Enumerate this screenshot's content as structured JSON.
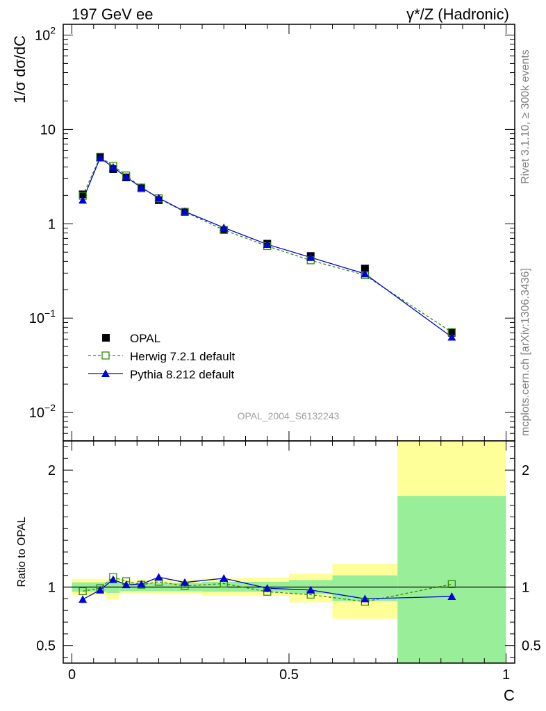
{
  "header": {
    "left": "197 GeV ee",
    "right_sup": "γ*/Z (Hadronic)"
  },
  "side_text": {
    "rivet": "Rivet 3.1.10, ≥ 300k events",
    "mcplots": "mcplots.cern.ch [arXiv:1306.3436]"
  },
  "analysis_id": "OPAL_2004_S6132243",
  "colors": {
    "data": "#000000",
    "herwig": "#2e8b00",
    "pythia": "#0000e0",
    "band_inner": "#99ee99",
    "band_outer": "#ffff99"
  },
  "chart_data": [
    {
      "type": "line",
      "panel": "main",
      "ylabel": "1/σ dσ/dC",
      "yscale": "log",
      "ylim": [
        0.005,
        130
      ],
      "xlim": [
        -0.02,
        1.02
      ],
      "yticks": [
        {
          "v": 100,
          "base": "10",
          "exp": "2"
        },
        {
          "v": 10,
          "base": "10",
          "exp": ""
        },
        {
          "v": 1,
          "base": "1",
          "exp": ""
        },
        {
          "v": 0.1,
          "base": "10",
          "exp": "−1"
        },
        {
          "v": 0.01,
          "base": "10",
          "exp": "−2"
        }
      ],
      "legend_position": "center-left",
      "series": [
        {
          "name": "OPAL",
          "marker": "filled-square",
          "x": [
            0.025,
            0.065,
            0.095,
            0.125,
            0.16,
            0.2,
            0.26,
            0.35,
            0.45,
            0.55,
            0.675,
            0.875
          ],
          "y": [
            2.05,
            5.15,
            3.8,
            3.1,
            2.38,
            1.78,
            1.33,
            0.86,
            0.615,
            0.455,
            0.335,
            0.07
          ]
        },
        {
          "name": "Herwig 7.2.1 default",
          "marker": "open-square",
          "line": "dashed",
          "x": [
            0.025,
            0.065,
            0.095,
            0.125,
            0.16,
            0.2,
            0.26,
            0.35,
            0.45,
            0.55,
            0.675,
            0.875
          ],
          "y": [
            1.98,
            5.1,
            4.12,
            3.25,
            2.42,
            1.86,
            1.34,
            0.86,
            0.58,
            0.41,
            0.285,
            0.071
          ]
        },
        {
          "name": "Pythia 8.212 default",
          "marker": "filled-triangle",
          "line": "solid",
          "x": [
            0.025,
            0.065,
            0.095,
            0.125,
            0.16,
            0.2,
            0.26,
            0.35,
            0.45,
            0.55,
            0.675,
            0.875
          ],
          "y": [
            1.78,
            4.98,
            3.98,
            3.12,
            2.42,
            1.88,
            1.35,
            0.91,
            0.605,
            0.44,
            0.295,
            0.063
          ]
        }
      ]
    },
    {
      "type": "line",
      "panel": "ratio",
      "ylabel": "Ratio to OPAL",
      "xlabel": "C",
      "ylim": [
        0.35,
        2.25
      ],
      "xlim": [
        -0.02,
        1.02
      ],
      "yticks": [
        {
          "v": 0.5,
          "label": "0.5"
        },
        {
          "v": 1,
          "label": "1"
        },
        {
          "v": 2,
          "label": "2"
        }
      ],
      "xticks": [
        {
          "v": 0,
          "label": "0"
        },
        {
          "v": 0.5,
          "label": "0.5"
        },
        {
          "v": 1,
          "label": "1"
        }
      ],
      "bands": [
        {
          "x0": 0.0,
          "x1": 0.08,
          "inner": [
            0.96,
            1.04
          ],
          "outer": [
            0.93,
            1.07
          ]
        },
        {
          "x0": 0.08,
          "x1": 0.11,
          "inner": [
            0.95,
            1.05
          ],
          "outer": [
            0.895,
            1.07
          ]
        },
        {
          "x0": 0.11,
          "x1": 0.14,
          "inner": [
            0.965,
            1.035
          ],
          "outer": [
            0.945,
            1.06
          ]
        },
        {
          "x0": 0.14,
          "x1": 0.18,
          "inner": [
            0.965,
            1.035
          ],
          "outer": [
            0.945,
            1.06
          ]
        },
        {
          "x0": 0.18,
          "x1": 0.22,
          "inner": [
            0.965,
            1.035
          ],
          "outer": [
            0.94,
            1.065
          ]
        },
        {
          "x0": 0.22,
          "x1": 0.3,
          "inner": [
            0.965,
            1.035
          ],
          "outer": [
            0.94,
            1.065
          ]
        },
        {
          "x0": 0.3,
          "x1": 0.4,
          "inner": [
            0.96,
            1.045
          ],
          "outer": [
            0.925,
            1.075
          ]
        },
        {
          "x0": 0.4,
          "x1": 0.5,
          "inner": [
            0.96,
            1.045
          ],
          "outer": [
            0.925,
            1.08
          ]
        },
        {
          "x0": 0.5,
          "x1": 0.6,
          "inner": [
            0.94,
            1.06
          ],
          "outer": [
            0.87,
            1.115
          ]
        },
        {
          "x0": 0.6,
          "x1": 0.75,
          "inner": [
            0.88,
            1.1
          ],
          "outer": [
            0.73,
            1.2
          ]
        },
        {
          "x0": 0.75,
          "x1": 1.0,
          "inner": [
            0.35,
            1.78
          ],
          "outer": [
            0.35,
            2.25
          ]
        }
      ],
      "series": [
        {
          "name": "Herwig 7.2.1 default",
          "x": [
            0.025,
            0.065,
            0.095,
            0.125,
            0.16,
            0.2,
            0.26,
            0.35,
            0.45,
            0.55,
            0.675,
            0.875
          ],
          "y": [
            0.965,
            0.99,
            1.085,
            1.05,
            1.02,
            1.045,
            1.01,
            1.03,
            0.96,
            0.935,
            0.875,
            1.025
          ]
        },
        {
          "name": "Pythia 8.212 default",
          "x": [
            0.025,
            0.065,
            0.095,
            0.125,
            0.16,
            0.2,
            0.26,
            0.35,
            0.45,
            0.55,
            0.675,
            0.875
          ],
          "y": [
            0.895,
            0.975,
            1.065,
            1.02,
            1.025,
            1.085,
            1.04,
            1.075,
            0.99,
            0.975,
            0.9,
            0.92
          ]
        }
      ]
    }
  ]
}
